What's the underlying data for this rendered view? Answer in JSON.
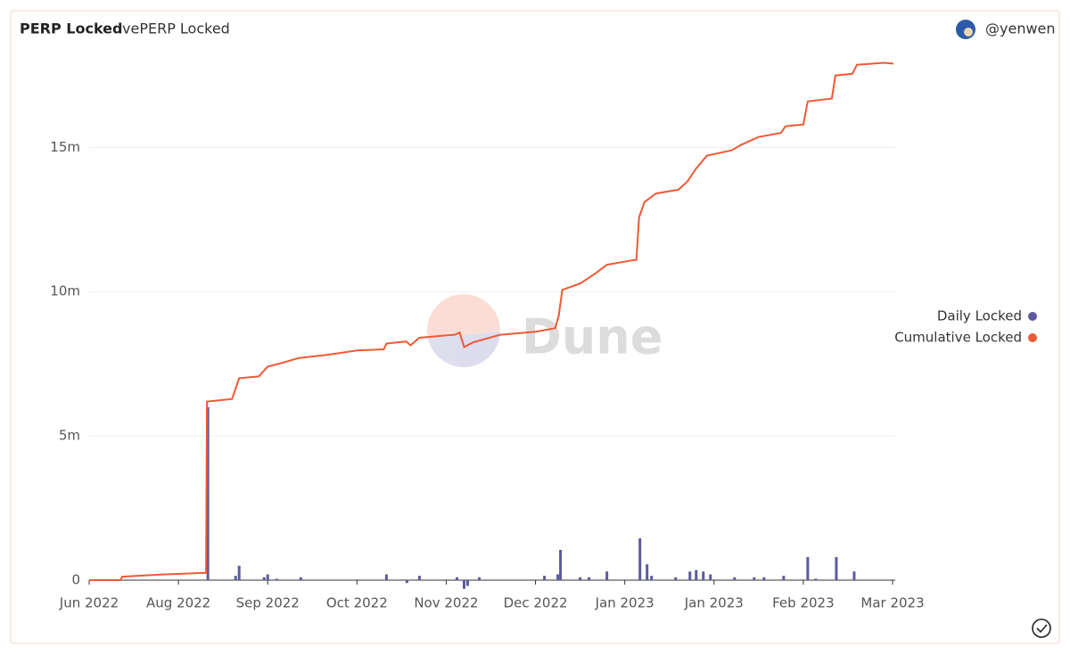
{
  "tabs": [
    "PERP Locked",
    "vePERP Locked"
  ],
  "user": "@yenwen",
  "watermark": "Dune",
  "chart_data": {
    "type": "combo",
    "xlim": [
      0,
      9
    ],
    "xticks": [
      {
        "value": 0,
        "label": "Jun 2022"
      },
      {
        "value": 1,
        "label": "Aug 2022"
      },
      {
        "value": 2,
        "label": "Sep 2022"
      },
      {
        "value": 3,
        "label": "Oct 2022"
      },
      {
        "value": 4,
        "label": "Nov 2022"
      },
      {
        "value": 5,
        "label": "Dec 2022"
      },
      {
        "value": 6,
        "label": "Jan 2023"
      },
      {
        "value": 7,
        "label": "Jan 2023"
      },
      {
        "value": 8,
        "label": "Feb 2023"
      },
      {
        "value": 9,
        "label": "Mar 2023"
      }
    ],
    "ylim": [
      0,
      18500000
    ],
    "yticks": [
      0,
      {
        "value": 5000000,
        "label": "5m"
      },
      {
        "value": 10000000,
        "label": "10m"
      },
      {
        "value": 15000000,
        "label": "15m"
      }
    ],
    "grid": true,
    "legend": "right",
    "series": [
      {
        "name": "Daily Locked",
        "color": "#5c5a9e",
        "mark": "bar",
        "x": [
          1.33,
          1.64,
          1.68,
          1.96,
          2.0,
          2.1,
          2.37,
          3.33,
          3.56,
          3.7,
          4.12,
          4.2,
          4.24,
          4.37,
          5.1,
          5.25,
          5.28,
          5.5,
          5.6,
          5.8,
          6.17,
          6.25,
          6.3,
          6.57,
          6.73,
          6.8,
          6.88,
          6.96,
          7.23,
          7.45,
          7.56,
          7.78,
          8.05,
          8.14,
          8.37,
          8.57
        ],
        "values": [
          6000000,
          150000,
          500000,
          100000,
          200000,
          50000,
          100000,
          200000,
          -100000,
          150000,
          100000,
          -300000,
          -200000,
          100000,
          150000,
          200000,
          1050000,
          100000,
          100000,
          300000,
          1450000,
          550000,
          150000,
          100000,
          300000,
          350000,
          300000,
          200000,
          100000,
          100000,
          100000,
          150000,
          800000,
          50000,
          800000,
          300000
        ]
      },
      {
        "name": "Cumulative Locked",
        "color": "#ee5a36",
        "mark": "line",
        "x": [
          0,
          0.35,
          0.37,
          0.8,
          1.28,
          1.31,
          1.32,
          1.6,
          1.68,
          1.9,
          2.0,
          2.15,
          2.35,
          2.65,
          3.0,
          3.3,
          3.33,
          3.55,
          3.6,
          3.7,
          4.1,
          4.15,
          4.2,
          4.3,
          4.6,
          5.0,
          5.22,
          5.26,
          5.3,
          5.5,
          5.68,
          5.8,
          6.08,
          6.13,
          6.16,
          6.22,
          6.35,
          6.6,
          6.7,
          6.8,
          6.92,
          7.2,
          7.3,
          7.5,
          7.75,
          7.8,
          8.0,
          8.05,
          8.32,
          8.36,
          8.55,
          8.6,
          8.9,
          9.01
        ],
        "values": [
          0,
          0,
          120000,
          190000,
          250000,
          250000,
          6190000,
          6280000,
          7000000,
          7060000,
          7400000,
          7520000,
          7700000,
          7800000,
          7960000,
          8000000,
          8200000,
          8270000,
          8140000,
          8400000,
          8510000,
          8580000,
          8080000,
          8240000,
          8500000,
          8610000,
          8730000,
          9160000,
          10060000,
          10280000,
          10650000,
          10930000,
          11080000,
          11100000,
          12570000,
          13100000,
          13400000,
          13530000,
          13810000,
          14270000,
          14710000,
          14900000,
          15080000,
          15360000,
          15500000,
          15730000,
          15790000,
          16590000,
          16690000,
          17490000,
          17550000,
          17860000,
          17930000,
          17900000
        ]
      }
    ]
  }
}
